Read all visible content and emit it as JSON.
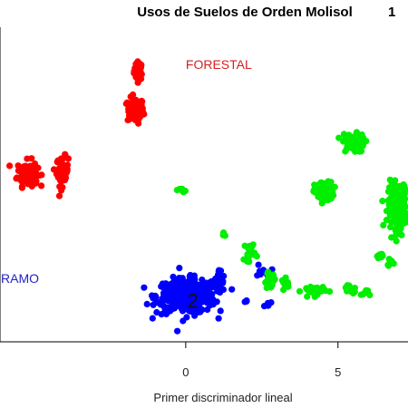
{
  "chart_data": {
    "type": "scatter",
    "title": "Usos de Suelos de Orden Molisol",
    "xlabel": "Primer discriminador lineal",
    "ylabel": "",
    "xlim": [
      -6.1,
      7.3
    ],
    "ylim": [
      -2.0,
      6.3
    ],
    "x_ticks": [
      0,
      5
    ],
    "grid": false,
    "annotations": [
      {
        "text": "FORESTAL",
        "x": 0.0,
        "y": 5.2,
        "color": "#d62020"
      },
      {
        "text": "RAMO",
        "x": -6.1,
        "y": -0.45,
        "color": "#2222cc"
      },
      {
        "text": "1",
        "x": 6.95,
        "y": 6.15,
        "color": "#000000"
      },
      {
        "text": "2",
        "x": 0.05,
        "y": -1.1,
        "color": "#111111"
      }
    ],
    "series": [
      {
        "color": "#ff0000",
        "clusters": [
          {
            "x": -1.55,
            "y": 5.15,
            "sx": 0.12,
            "sy": 0.2,
            "n": 40
          },
          {
            "x": -1.65,
            "y": 4.1,
            "sx": 0.22,
            "sy": 0.28,
            "n": 90
          },
          {
            "x": -5.2,
            "y": 2.45,
            "sx": 0.28,
            "sy": 0.28,
            "n": 100
          },
          {
            "x": -4.05,
            "y": 2.5,
            "sx": 0.16,
            "sy": 0.32,
            "n": 60
          }
        ]
      },
      {
        "color": "#0000ff",
        "clusters": [
          {
            "x": 0.0,
            "y": -0.8,
            "sx": 0.8,
            "sy": 0.38,
            "n": 380
          },
          {
            "x": 1.1,
            "y": -0.45,
            "sx": 0.15,
            "sy": 0.3,
            "n": 30
          },
          {
            "x": 2.55,
            "y": -0.1,
            "sx": 0.2,
            "sy": 0.15,
            "n": 8
          },
          {
            "x": 2.7,
            "y": -1.0,
            "sx": 0.08,
            "sy": 0.08,
            "n": 5
          },
          {
            "x": 2.0,
            "y": -0.9,
            "sx": 0.05,
            "sy": 0.05,
            "n": 3
          }
        ]
      },
      {
        "color": "#00ee00",
        "clusters": [
          {
            "x": 5.5,
            "y": 3.25,
            "sx": 0.3,
            "sy": 0.2,
            "n": 80
          },
          {
            "x": 4.55,
            "y": 1.95,
            "sx": 0.26,
            "sy": 0.22,
            "n": 80
          },
          {
            "x": 7.0,
            "y": 1.6,
            "sx": 0.3,
            "sy": 0.5,
            "n": 200
          },
          {
            "x": -0.1,
            "y": 2.0,
            "sx": 0.08,
            "sy": 0.04,
            "n": 8
          },
          {
            "x": 2.1,
            "y": 0.4,
            "sx": 0.15,
            "sy": 0.22,
            "n": 20
          },
          {
            "x": 2.75,
            "y": -0.4,
            "sx": 0.18,
            "sy": 0.18,
            "n": 20
          },
          {
            "x": 3.3,
            "y": -0.45,
            "sx": 0.12,
            "sy": 0.1,
            "n": 12
          },
          {
            "x": 4.2,
            "y": -0.65,
            "sx": 0.32,
            "sy": 0.12,
            "n": 30
          },
          {
            "x": 5.3,
            "y": -0.55,
            "sx": 0.08,
            "sy": 0.08,
            "n": 6
          },
          {
            "x": 5.5,
            "y": -0.65,
            "sx": 0.08,
            "sy": 0.08,
            "n": 6
          },
          {
            "x": 5.9,
            "y": -0.7,
            "sx": 0.12,
            "sy": 0.08,
            "n": 8
          },
          {
            "x": 6.35,
            "y": 0.25,
            "sx": 0.1,
            "sy": 0.1,
            "n": 8
          },
          {
            "x": 6.75,
            "y": 0.05,
            "sx": 0.1,
            "sy": 0.1,
            "n": 8
          },
          {
            "x": 1.25,
            "y": 0.85,
            "sx": 0.05,
            "sy": 0.05,
            "n": 4
          }
        ]
      }
    ]
  }
}
